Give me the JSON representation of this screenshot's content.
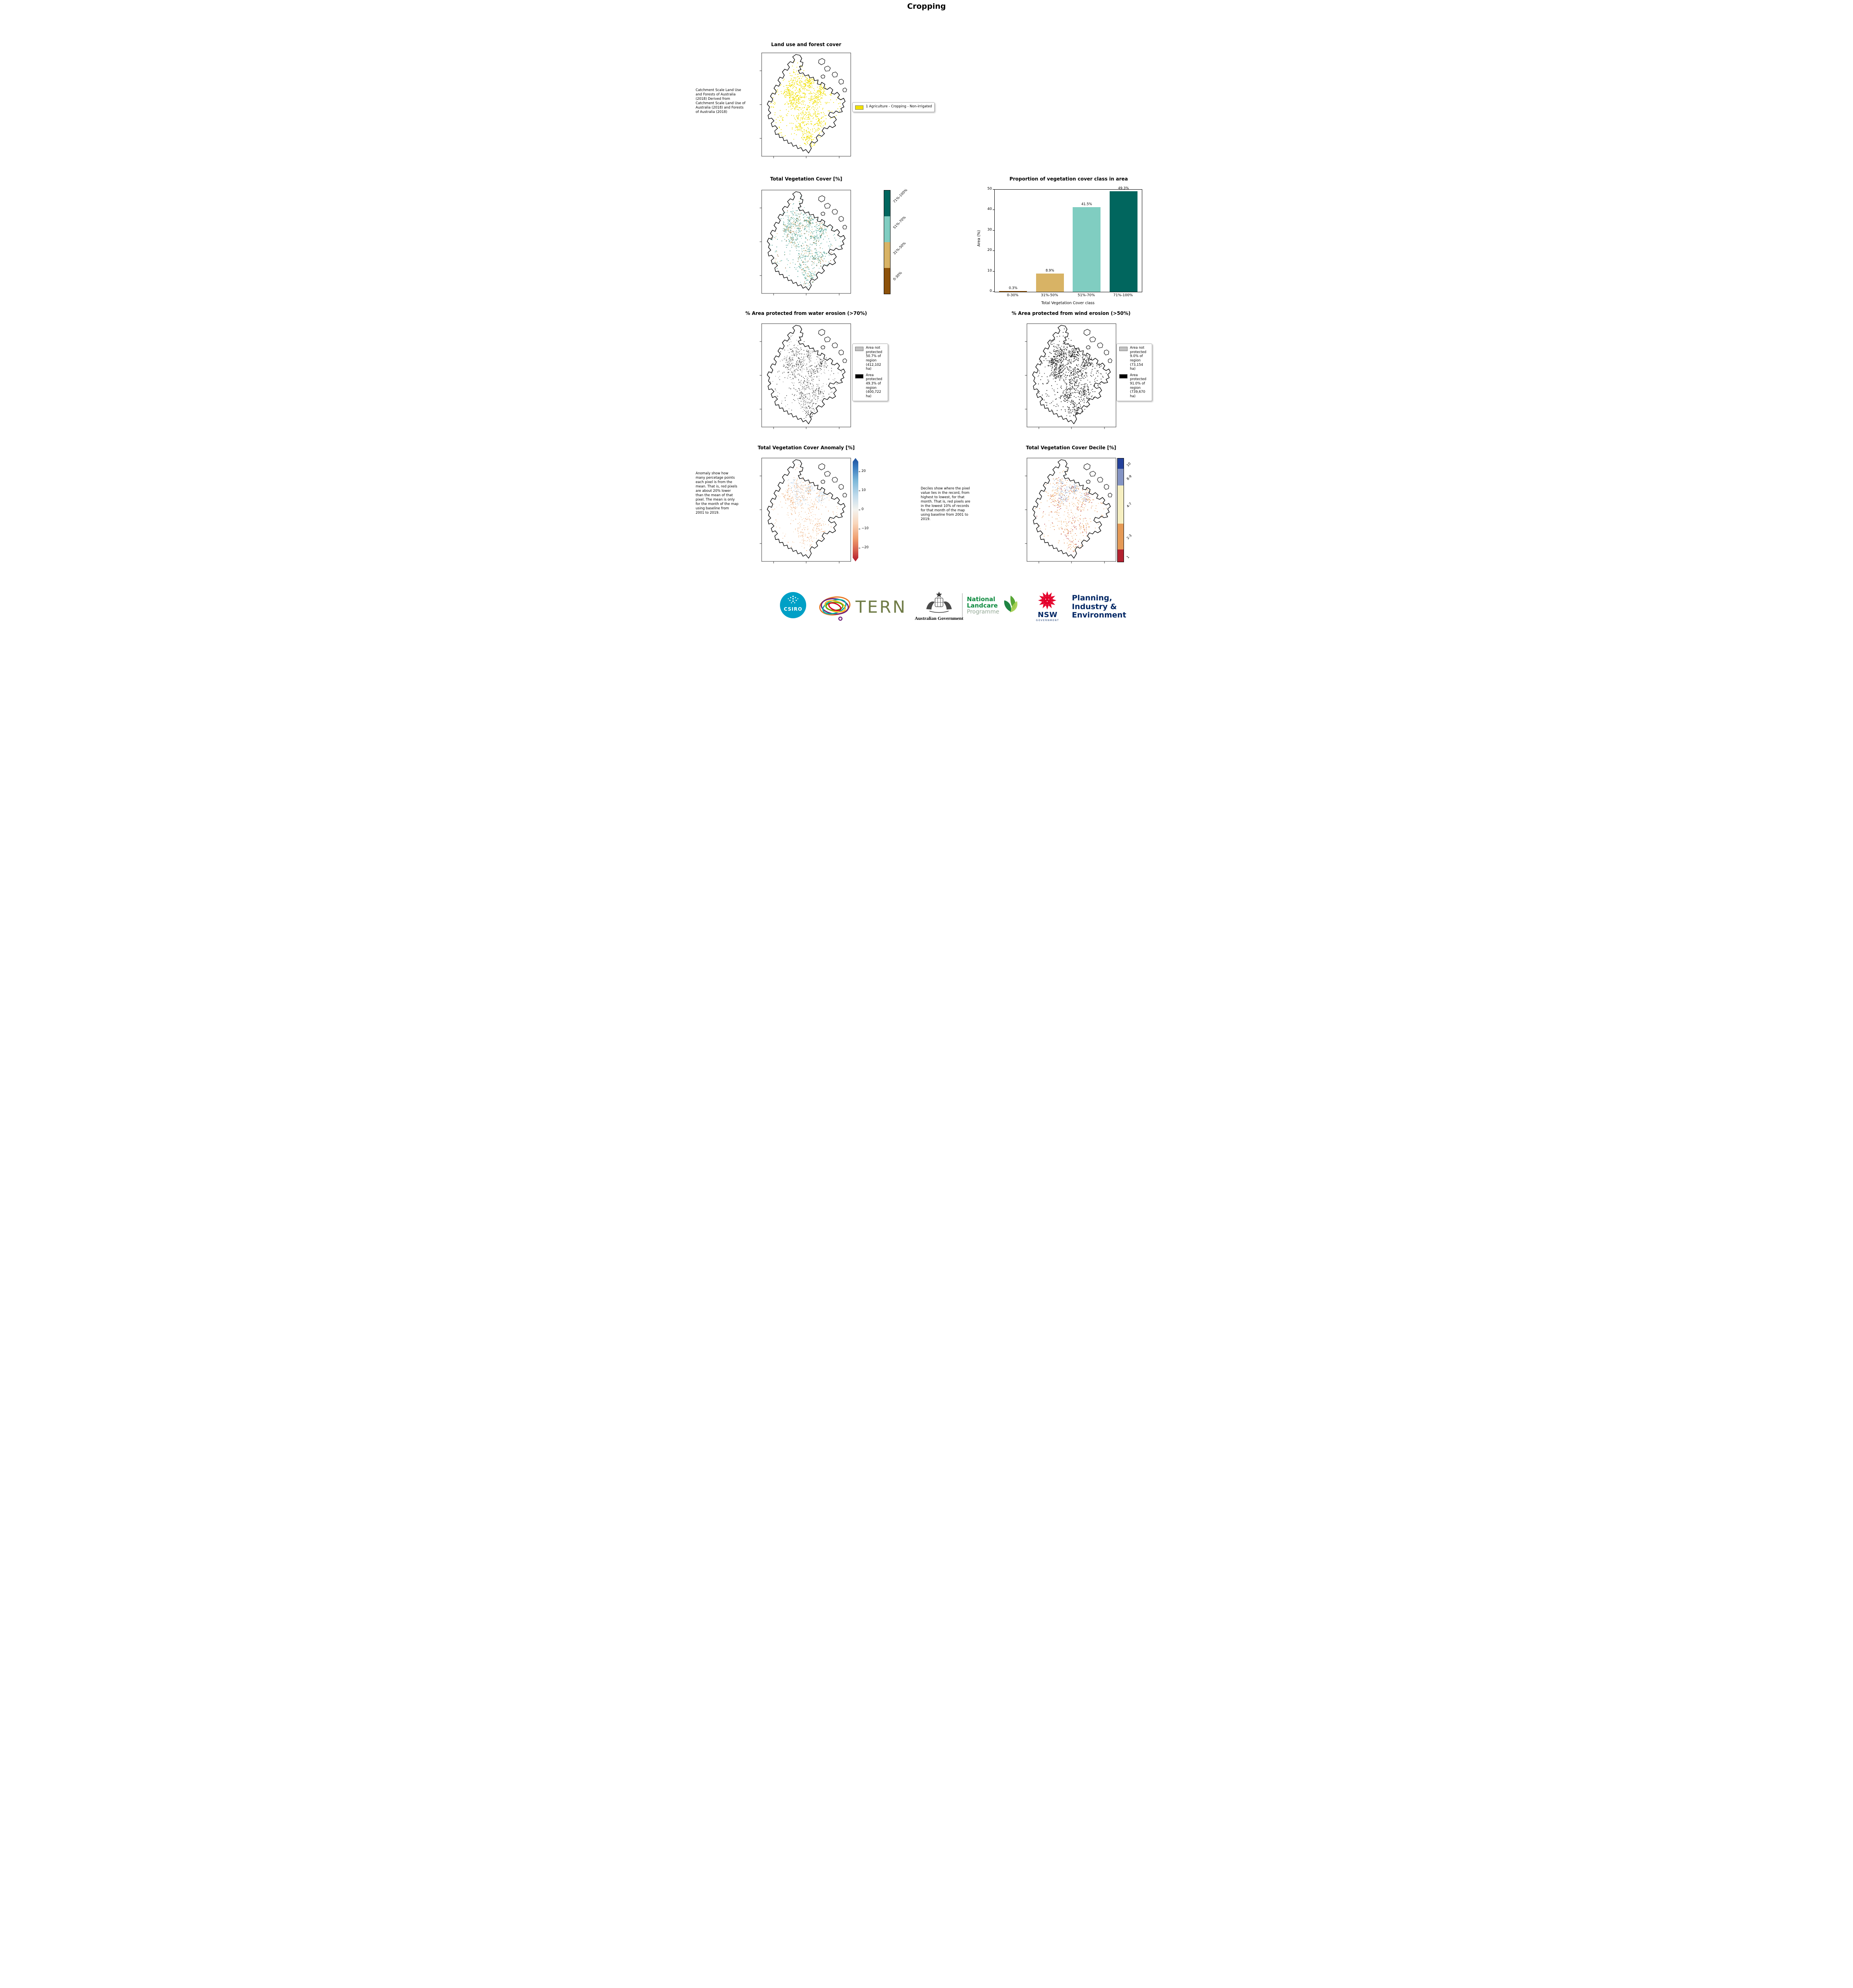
{
  "page": {
    "title": "Cropping"
  },
  "panels": {
    "landuse": {
      "title": "Land use and forest cover",
      "caption": "Catchment Scale Land Use and Forests of Australia (2018) Derived from Catchment Scale Land Use of Australia (2018) and Forests of Australia (2018)",
      "legend": [
        {
          "color": "#f0e000",
          "label": "1 Agriculture - Cropping - Non-irrigated"
        }
      ]
    },
    "vegcover": {
      "title": "Total Vegetation Cover [%]",
      "colorbar": [
        {
          "label": "71%-100%",
          "color": "#01665e"
        },
        {
          "label": "51%-70%",
          "color": "#80cdc1"
        },
        {
          "label": "31%-50%",
          "color": "#d8b365"
        },
        {
          "label": "0-30%",
          "color": "#8c510a"
        }
      ]
    },
    "water": {
      "title": "% Area protected from water erosion (>70%)",
      "legend": [
        {
          "color": "#c2c2c2",
          "label": "Area not protected 50.7% of region (412,102 ha)"
        },
        {
          "color": "#000000",
          "label": "Area protected 49.3% of region (400,722 ha)"
        }
      ]
    },
    "wind": {
      "title": "% Area protected from wind erosion (>50%)",
      "legend": [
        {
          "color": "#c2c2c2",
          "label": "Area not protected 9.0% of region (73,154 ha)"
        },
        {
          "color": "#000000",
          "label": "Area protected 91.0% of region (739,670 ha)"
        }
      ]
    },
    "anomaly": {
      "title": "Total Vegetation Cover Anomaly [%]",
      "caption": "Anomaly show how many percetage points each pixel is from the mean. That is, red pixels are about 20% lower than the mean of that pixel. The mean is only for the month of the map using baseline from 2001 to 2019.",
      "colorbar_ticks": [
        "20",
        "10",
        "0",
        "−10",
        "−20"
      ]
    },
    "decile": {
      "title": "Total Vegetation Cover Decile [%]",
      "caption": "Deciles show where the pixel value lies in the record, from highest to lowest, for that month. That is, red pixels are in the lowest 10% of records for that month of the map using baseline from 2001 to 2019.",
      "colorbar": [
        {
          "label": "10",
          "color": "#24419a"
        },
        {
          "label": "8-9",
          "color": "#8494c4"
        },
        {
          "label": "4-7",
          "color": "#f6efc1"
        },
        {
          "label": "2-3",
          "color": "#e59a56"
        },
        {
          "label": "1",
          "color": "#b22230"
        }
      ]
    }
  },
  "chart_data": {
    "type": "bar",
    "title": "Proportion of vegetation cover class in area",
    "categories": [
      "0-30%",
      "31%-50%",
      "51%-70%",
      "71%-100%"
    ],
    "values": [
      0.3,
      8.9,
      41.5,
      49.3
    ],
    "labels": [
      "0.3%",
      "8.9%",
      "41.5%",
      "49.3%"
    ],
    "colors": [
      "#8c510a",
      "#d8b365",
      "#80cdc1",
      "#01665e"
    ],
    "xlabel": "Total Vegetation Cover class",
    "ylabel": "Area (%)",
    "ylim": [
      0,
      50
    ],
    "yticks": [
      0,
      10,
      20,
      30,
      40,
      50
    ],
    "legend_position": "none",
    "grid": false
  },
  "footer": {
    "csiro": "CSIRO",
    "tern": "TERN",
    "ausgov": "Australian Government",
    "landcare": {
      "line1": "National",
      "line2": "Landcare",
      "line3": "Programme"
    },
    "nsw": {
      "name": "NSW",
      "sub": "GOVERNMENT"
    },
    "agency": {
      "line1": "Planning,",
      "line2": "Industry &",
      "line3": "Environment"
    }
  }
}
